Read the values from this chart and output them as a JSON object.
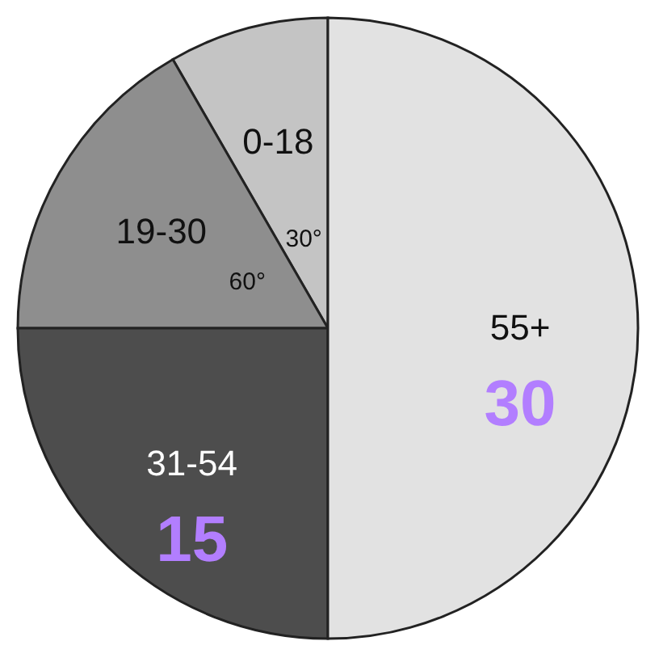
{
  "chart_data": {
    "type": "pie",
    "categories": [
      "0-18",
      "19-30",
      "31-54",
      "55+"
    ],
    "values": [
      5,
      10,
      15,
      30
    ],
    "colors": [
      "#c4c4c4",
      "#8e8e8e",
      "#4d4d4d",
      "#e2e2e2"
    ],
    "value_labels": [
      null,
      null,
      "15",
      "30"
    ],
    "annotations": [
      "30°",
      "60°"
    ]
  }
}
